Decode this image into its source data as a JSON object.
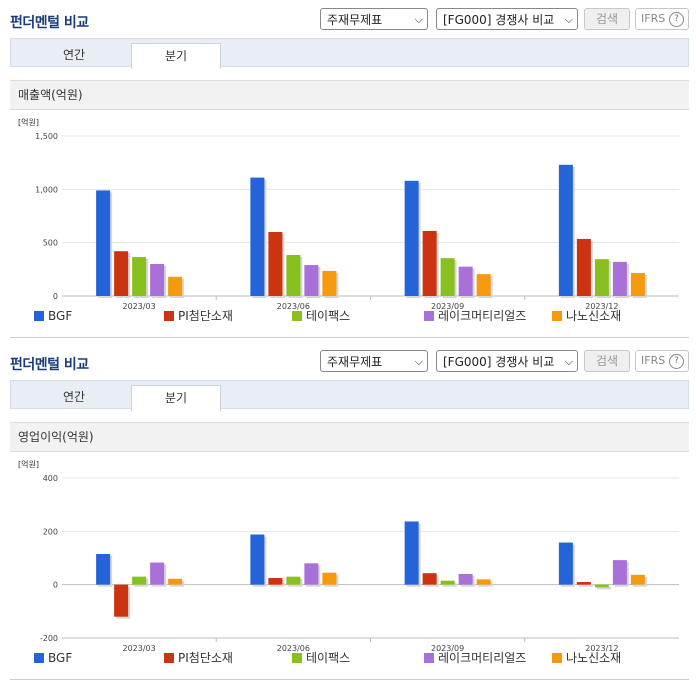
{
  "panels": [
    {
      "title": "펀더멘털 비교",
      "select_report": "주재무제표",
      "select_compare": "[FG000] 경쟁사 비교",
      "search_button": "검색",
      "ifrs_label": "IFRS",
      "ifrs_help": "?",
      "tabs": [
        {
          "label": "연간",
          "active": false
        },
        {
          "label": "분기",
          "active": true
        }
      ],
      "section_title": "매출액(억원)"
    },
    {
      "title": "펀더멘털 비교",
      "select_report": "주재무제표",
      "select_compare": "[FG000] 경쟁사 비교",
      "search_button": "검색",
      "ifrs_label": "IFRS",
      "ifrs_help": "?",
      "tabs": [
        {
          "label": "연간",
          "active": false
        },
        {
          "label": "분기",
          "active": true
        }
      ],
      "section_title": "영업이익(억원)"
    }
  ],
  "chart_data": [
    {
      "type": "bar",
      "unit_label": "[억원]",
      "categories": [
        "2023/03",
        "2023/06",
        "2023/09",
        "2023/12"
      ],
      "ylim": [
        0,
        1500
      ],
      "yticks": [
        0,
        500,
        1000,
        1500
      ],
      "ytick_labels": [
        "0",
        "500",
        "1,000",
        "1,500"
      ],
      "grid": true,
      "legend_position": "bottom",
      "series": [
        {
          "name": "BGF",
          "color": "#2563d9",
          "values": [
            990,
            1110,
            1080,
            1230
          ]
        },
        {
          "name": "PI첨단소재",
          "color": "#cc3311",
          "values": [
            420,
            600,
            610,
            535
          ]
        },
        {
          "name": "테이팩스",
          "color": "#88c020",
          "values": [
            365,
            385,
            355,
            345
          ]
        },
        {
          "name": "레이크머티리얼즈",
          "color": "#a970d8",
          "values": [
            300,
            290,
            275,
            320
          ]
        },
        {
          "name": "나노신소재",
          "color": "#f59a0f",
          "values": [
            180,
            235,
            205,
            215
          ]
        }
      ]
    },
    {
      "type": "bar",
      "unit_label": "[억원]",
      "categories": [
        "2023/03",
        "2023/06",
        "2023/09",
        "2023/12"
      ],
      "ylim": [
        -200,
        400
      ],
      "yticks": [
        -200,
        0,
        200,
        400
      ],
      "ytick_labels": [
        "-200",
        "0",
        "200",
        "400"
      ],
      "grid": true,
      "legend_position": "bottom",
      "series": [
        {
          "name": "BGF",
          "color": "#2563d9",
          "values": [
            115,
            188,
            237,
            158
          ]
        },
        {
          "name": "PI첨단소재",
          "color": "#cc3311",
          "values": [
            -120,
            25,
            43,
            10
          ]
        },
        {
          "name": "테이팩스",
          "color": "#88c020",
          "values": [
            30,
            30,
            15,
            -10
          ]
        },
        {
          "name": "레이크머티리얼즈",
          "color": "#a970d8",
          "values": [
            83,
            80,
            40,
            92
          ]
        },
        {
          "name": "나노신소재",
          "color": "#f59a0f",
          "values": [
            22,
            45,
            20,
            37
          ]
        }
      ]
    }
  ]
}
